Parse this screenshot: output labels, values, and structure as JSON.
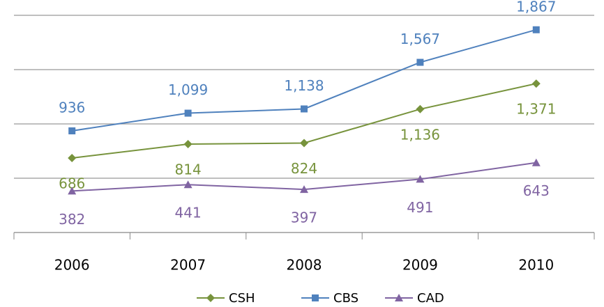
{
  "chart_data": {
    "type": "line",
    "categories": [
      "2006",
      "2007",
      "2008",
      "2009",
      "2010"
    ],
    "series": [
      {
        "name": "CSH",
        "color": "#77933c",
        "values": [
          686,
          814,
          824,
          1136,
          1371
        ],
        "value_labels": [
          "686",
          "814",
          "824",
          "1,136",
          "1,371"
        ]
      },
      {
        "name": "CBS",
        "color": "#4f81bd",
        "values": [
          936,
          1099,
          1138,
          1567,
          1867
        ],
        "value_labels": [
          "936",
          "1,099",
          "1,138",
          "1,567",
          "1,867"
        ]
      },
      {
        "name": "CAD",
        "color": "#8064a2",
        "values": [
          382,
          441,
          397,
          491,
          643
        ],
        "value_labels": [
          "382",
          "441",
          "397",
          "491",
          "643"
        ]
      }
    ],
    "ylim": [
      0,
      2000
    ],
    "yticks": [
      0,
      500,
      1000,
      1500,
      2000
    ],
    "grid": true,
    "legend": "bottom"
  }
}
